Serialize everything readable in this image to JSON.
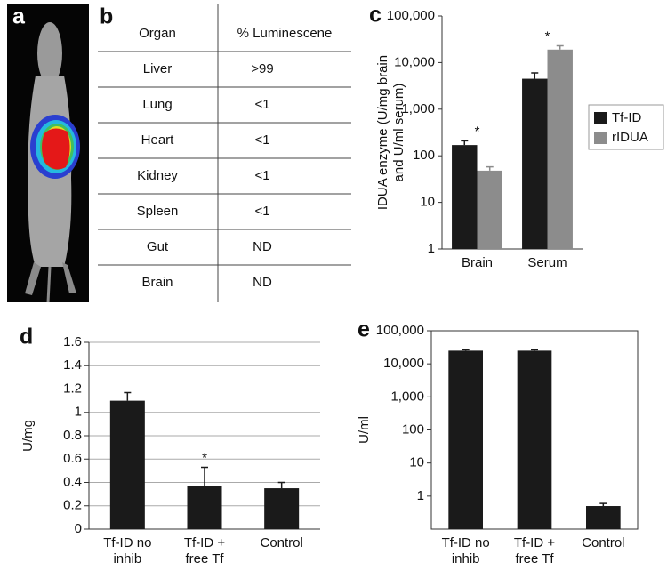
{
  "panel_a": {
    "label": "a"
  },
  "panel_b": {
    "label": "b",
    "table": {
      "header": [
        "Organ",
        "% Luminescene"
      ],
      "rows": [
        [
          "Liver",
          ">99"
        ],
        [
          "Lung",
          "<1"
        ],
        [
          "Heart",
          "<1"
        ],
        [
          "Kidney",
          "<1"
        ],
        [
          "Spleen",
          "<1"
        ],
        [
          "Gut",
          "ND"
        ],
        [
          "Brain",
          "ND"
        ]
      ]
    }
  },
  "chart_data": [
    {
      "type": "bar",
      "panel_label": "c",
      "log_scale": true,
      "grid": false,
      "y_label": [
        "IDUA enzyme (U/mg brain",
        "and U/ml serum)"
      ],
      "categories": [
        [
          "Brain"
        ],
        [
          "Serum"
        ]
      ],
      "series": [
        {
          "name": "Tf-ID",
          "color": "#1a1a1a",
          "values": [
            170,
            4500
          ],
          "errors": [
            40,
            1500
          ]
        },
        {
          "name": "rIDUA",
          "color": "#8c8c8c",
          "values": [
            48,
            19000
          ],
          "errors": [
            10,
            4000
          ]
        }
      ],
      "significance": [
        "*",
        "*"
      ],
      "ylim": [
        1,
        100000
      ],
      "yticks": [
        1,
        10,
        100,
        {
          "value": 1000,
          "label": "1,000"
        },
        {
          "value": 10000,
          "label": "10,000"
        },
        {
          "value": 100000,
          "label": "100,000"
        }
      ],
      "legend": "right"
    },
    {
      "type": "bar",
      "panel_label": "d",
      "log_scale": false,
      "grid": true,
      "y_label": [
        "U/mg"
      ],
      "categories": [
        [
          "Tf-ID no",
          "inhib"
        ],
        [
          "Tf-ID +",
          "free Tf"
        ],
        [
          "Control"
        ]
      ],
      "color": "#1a1a1a",
      "values": [
        1.1,
        0.37,
        0.35
      ],
      "errors": [
        0.07,
        0.16,
        0.05
      ],
      "significance": [
        null,
        "*",
        null
      ],
      "ylim": [
        0,
        1.6
      ],
      "yticks": [
        0,
        0.2,
        0.4,
        0.6,
        0.8,
        1,
        1.2,
        1.4,
        1.6
      ]
    },
    {
      "type": "bar",
      "panel_label": "e",
      "log_scale": true,
      "grid": false,
      "y_label": [
        "U/ml"
      ],
      "categories": [
        [
          "Tf-ID no",
          "inhib"
        ],
        [
          "Tf-ID +",
          "free Tf"
        ],
        [
          "Control"
        ]
      ],
      "color": "#1a1a1a",
      "values": [
        25000,
        25000,
        0.5
      ],
      "errors": [
        1500,
        1500,
        0.1
      ],
      "ylim": [
        0.1,
        100000
      ],
      "yticks": [
        1,
        10,
        100,
        {
          "value": 1000,
          "label": "1,000"
        },
        {
          "value": 10000,
          "label": "10,000"
        },
        {
          "value": 100000,
          "label": "100,000"
        }
      ]
    }
  ]
}
